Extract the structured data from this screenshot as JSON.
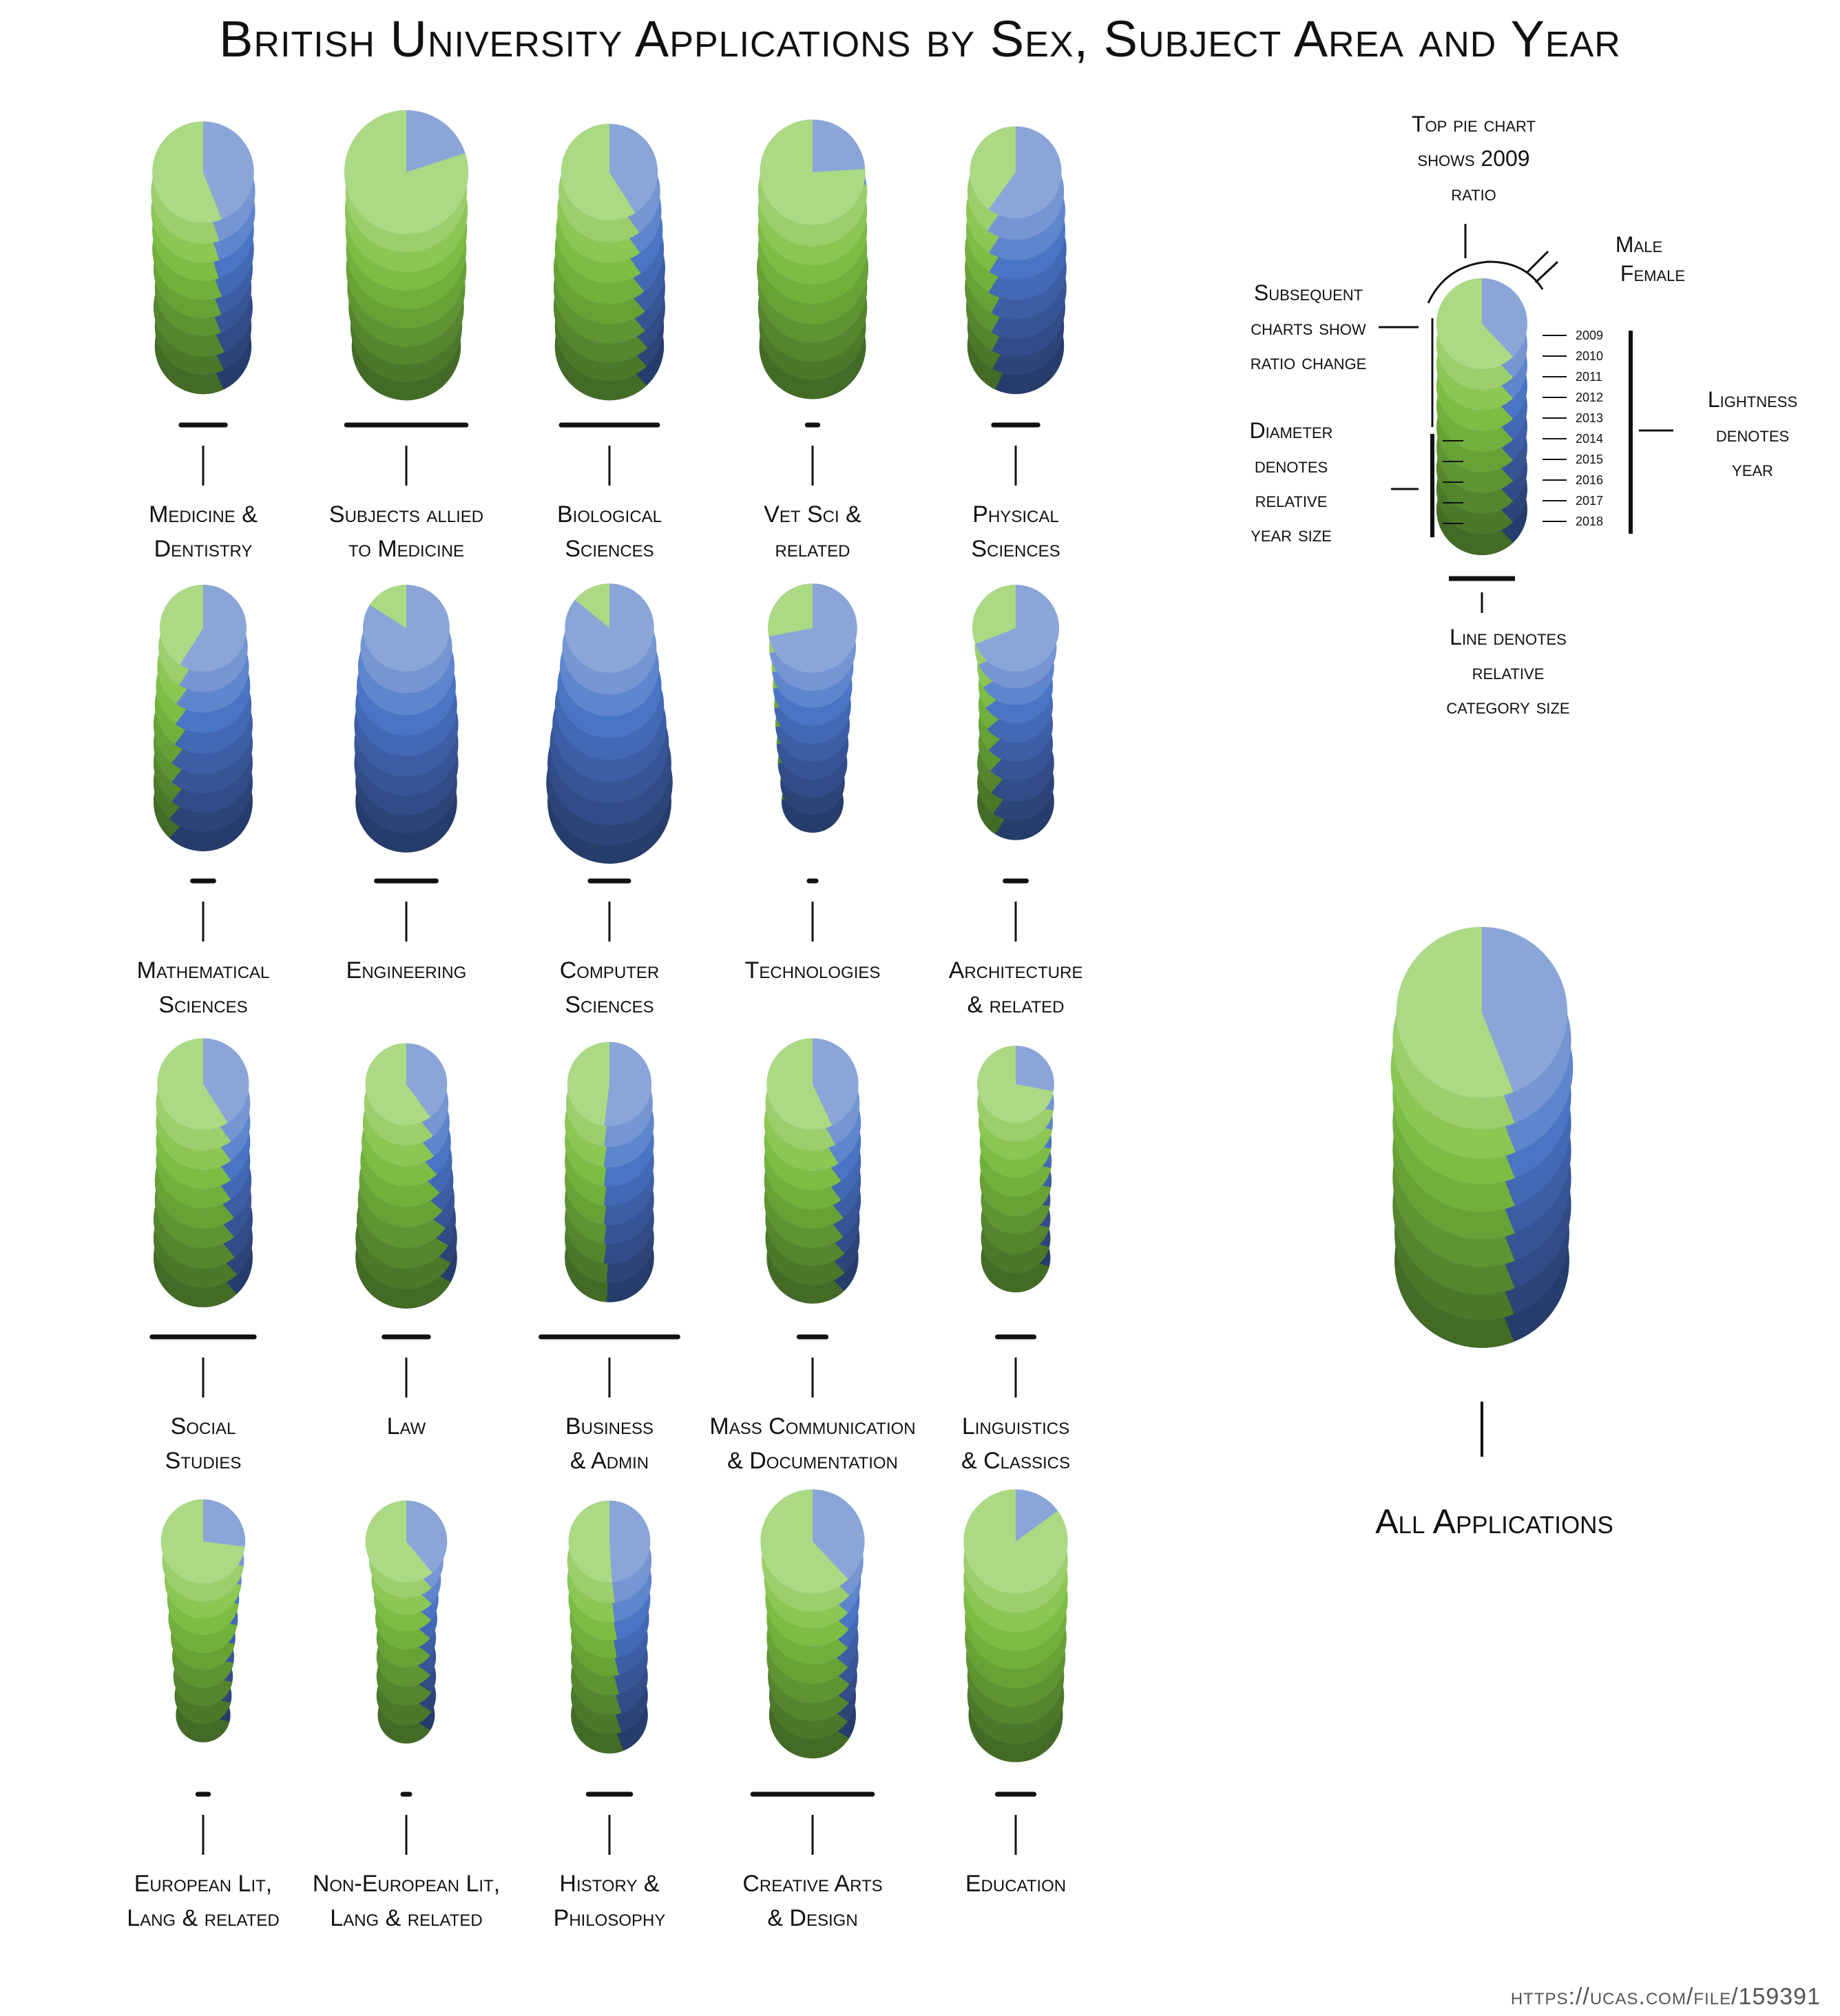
{
  "title": "British University Applications by Sex, Subject Area and Year",
  "source": "https://ucas.com/file/159391",
  "colors": {
    "female": "#7fbf3f",
    "male": "#3f6fbf"
  },
  "chart_data": {
    "type": "pie",
    "subtitle": "",
    "years": [
      "2009",
      "2010",
      "2011",
      "2012",
      "2013",
      "2014",
      "2015",
      "2016",
      "2017",
      "2018"
    ],
    "categories": [
      {
        "label1": "Medicine &",
        "label2": "Dentistry",
        "female_share": [
          0.56,
          0.55,
          0.55,
          0.55,
          0.56,
          0.56,
          0.56,
          0.57,
          0.57,
          0.57
        ],
        "relative_year_size": [
          0.82,
          0.84,
          0.84,
          0.82,
          0.82,
          0.8,
          0.78,
          0.8,
          0.78,
          0.78
        ],
        "relative_category_size": 0.46
      },
      {
        "label1": "Subjects allied",
        "label2": "to Medicine",
        "female_share": [
          0.8,
          0.8,
          0.79,
          0.79,
          0.79,
          0.79,
          0.78,
          0.78,
          0.78,
          0.78
        ],
        "relative_year_size": [
          1.0,
          0.98,
          0.99,
          0.98,
          0.97,
          0.97,
          0.95,
          0.93,
          0.9,
          0.88
        ],
        "relative_category_size": 1.24
      },
      {
        "label1": "Biological",
        "label2": "Sciences",
        "female_share": [
          0.59,
          0.6,
          0.6,
          0.6,
          0.61,
          0.61,
          0.61,
          0.62,
          0.62,
          0.62
        ],
        "relative_year_size": [
          0.78,
          0.82,
          0.84,
          0.86,
          0.88,
          0.9,
          0.9,
          0.9,
          0.88,
          0.88
        ],
        "relative_category_size": 1.0
      },
      {
        "label1": "Vet Sci &",
        "label2": "related",
        "female_share": [
          0.76,
          0.77,
          0.78,
          0.78,
          0.79,
          0.79,
          0.8,
          0.8,
          0.8,
          0.81
        ],
        "relative_year_size": [
          0.85,
          0.88,
          0.88,
          0.88,
          0.88,
          0.9,
          0.88,
          0.88,
          0.86,
          0.86
        ],
        "relative_category_size": 0.11
      },
      {
        "label1": "Physical",
        "label2": "Sciences",
        "female_share": [
          0.4,
          0.4,
          0.41,
          0.41,
          0.41,
          0.42,
          0.42,
          0.42,
          0.42,
          0.43
        ],
        "relative_year_size": [
          0.74,
          0.78,
          0.8,
          0.8,
          0.82,
          0.82,
          0.82,
          0.8,
          0.78,
          0.78
        ],
        "relative_category_size": 0.46
      },
      {
        "label1": "Mathematical",
        "label2": "Sciences",
        "female_share": [
          0.41,
          0.41,
          0.4,
          0.4,
          0.4,
          0.39,
          0.39,
          0.39,
          0.38,
          0.38
        ],
        "relative_year_size": [
          0.7,
          0.72,
          0.74,
          0.76,
          0.78,
          0.8,
          0.8,
          0.8,
          0.8,
          0.8
        ],
        "relative_category_size": 0.22
      },
      {
        "label1": "Engineering",
        "label2": "",
        "female_share": [
          0.16,
          0.16,
          0.16,
          0.17,
          0.17,
          0.18,
          0.18,
          0.19,
          0.19,
          0.2
        ],
        "relative_year_size": [
          0.7,
          0.74,
          0.78,
          0.8,
          0.82,
          0.84,
          0.84,
          0.84,
          0.82,
          0.82
        ],
        "relative_category_size": 0.62
      },
      {
        "label1": "Computer",
        "label2": "Sciences",
        "female_share": [
          0.14,
          0.14,
          0.14,
          0.15,
          0.15,
          0.15,
          0.16,
          0.16,
          0.17,
          0.18
        ],
        "relative_year_size": [
          0.72,
          0.76,
          0.8,
          0.84,
          0.88,
          0.92,
          0.96,
          1.0,
          1.02,
          1.0
        ],
        "relative_category_size": 0.4
      },
      {
        "label1": "Technologies",
        "label2": "",
        "female_share": [
          0.28,
          0.27,
          0.27,
          0.26,
          0.26,
          0.26,
          0.25,
          0.25,
          0.24,
          0.24
        ],
        "relative_year_size": [
          0.72,
          0.7,
          0.66,
          0.64,
          0.62,
          0.6,
          0.58,
          0.56,
          0.52,
          0.5
        ],
        "relative_category_size": 0.04
      },
      {
        "label1": "Architecture",
        "label2": "& related",
        "female_share": [
          0.31,
          0.32,
          0.34,
          0.35,
          0.36,
          0.37,
          0.38,
          0.39,
          0.4,
          0.41
        ],
        "relative_year_size": [
          0.7,
          0.66,
          0.62,
          0.6,
          0.6,
          0.6,
          0.6,
          0.62,
          0.62,
          0.62
        ],
        "relative_category_size": 0.22
      },
      {
        "label1": "Social",
        "label2": "Studies",
        "female_share": [
          0.59,
          0.6,
          0.6,
          0.6,
          0.6,
          0.61,
          0.61,
          0.61,
          0.62,
          0.62
        ],
        "relative_year_size": [
          0.74,
          0.76,
          0.76,
          0.76,
          0.76,
          0.78,
          0.78,
          0.8,
          0.8,
          0.8
        ],
        "relative_category_size": 1.06
      },
      {
        "label1": "Law",
        "label2": "",
        "female_share": [
          0.6,
          0.61,
          0.61,
          0.62,
          0.63,
          0.64,
          0.65,
          0.66,
          0.67,
          0.67
        ],
        "relative_year_size": [
          0.66,
          0.68,
          0.7,
          0.72,
          0.74,
          0.76,
          0.78,
          0.8,
          0.82,
          0.82
        ],
        "relative_category_size": 0.46
      },
      {
        "label1": "Business",
        "label2": "& Admin",
        "female_share": [
          0.48,
          0.48,
          0.48,
          0.48,
          0.48,
          0.48,
          0.48,
          0.48,
          0.49,
          0.49
        ],
        "relative_year_size": [
          0.68,
          0.7,
          0.72,
          0.72,
          0.72,
          0.72,
          0.72,
          0.72,
          0.72,
          0.72
        ],
        "relative_category_size": 1.42
      },
      {
        "label1": "Mass Communication",
        "label2": "& Documentation",
        "female_share": [
          0.57,
          0.58,
          0.59,
          0.6,
          0.6,
          0.61,
          0.61,
          0.62,
          0.62,
          0.62
        ],
        "relative_year_size": [
          0.74,
          0.76,
          0.78,
          0.78,
          0.78,
          0.78,
          0.78,
          0.76,
          0.76,
          0.74
        ],
        "relative_category_size": 0.28
      },
      {
        "label1": "Linguistics",
        "label2": "& Classics",
        "female_share": [
          0.72,
          0.72,
          0.72,
          0.72,
          0.72,
          0.72,
          0.72,
          0.71,
          0.71,
          0.71
        ],
        "relative_year_size": [
          0.62,
          0.62,
          0.6,
          0.58,
          0.58,
          0.58,
          0.56,
          0.56,
          0.56,
          0.56
        ],
        "relative_category_size": 0.38
      },
      {
        "label1": "European Lit,",
        "label2": "Lang & related",
        "female_share": [
          0.73,
          0.73,
          0.73,
          0.73,
          0.72,
          0.72,
          0.72,
          0.72,
          0.71,
          0.71
        ],
        "relative_year_size": [
          0.68,
          0.66,
          0.62,
          0.58,
          0.56,
          0.52,
          0.5,
          0.48,
          0.46,
          0.44
        ],
        "relative_category_size": 0.11
      },
      {
        "label1": "Non-European Lit,",
        "label2": "Lang & related",
        "female_share": [
          0.61,
          0.62,
          0.63,
          0.64,
          0.64,
          0.65,
          0.65,
          0.66,
          0.66,
          0.66
        ],
        "relative_year_size": [
          0.66,
          0.6,
          0.56,
          0.52,
          0.5,
          0.48,
          0.48,
          0.48,
          0.48,
          0.46
        ],
        "relative_category_size": 0.04
      },
      {
        "label1": "History &",
        "label2": "Philosophy",
        "female_share": [
          0.51,
          0.52,
          0.52,
          0.53,
          0.53,
          0.54,
          0.54,
          0.55,
          0.55,
          0.56
        ],
        "relative_year_size": [
          0.66,
          0.68,
          0.68,
          0.66,
          0.64,
          0.62,
          0.62,
          0.62,
          0.62,
          0.62
        ],
        "relative_category_size": 0.44
      },
      {
        "label1": "Creative Arts",
        "label2": "& Design",
        "female_share": [
          0.62,
          0.63,
          0.63,
          0.64,
          0.64,
          0.64,
          0.65,
          0.65,
          0.65,
          0.66
        ],
        "relative_year_size": [
          0.84,
          0.82,
          0.78,
          0.76,
          0.74,
          0.74,
          0.74,
          0.72,
          0.7,
          0.7
        ],
        "relative_category_size": 1.24
      },
      {
        "label1": "Education",
        "label2": "",
        "female_share": [
          0.85,
          0.85,
          0.86,
          0.86,
          0.86,
          0.87,
          0.87,
          0.87,
          0.87,
          0.88
        ],
        "relative_year_size": [
          0.84,
          0.84,
          0.84,
          0.84,
          0.82,
          0.82,
          0.8,
          0.78,
          0.78,
          0.76
        ],
        "relative_category_size": 0.38
      }
    ],
    "all": {
      "label": "All Applications",
      "female_share": [
        0.56,
        0.56,
        0.56,
        0.56,
        0.56,
        0.56,
        0.56,
        0.56,
        0.56,
        0.56
      ],
      "relative_year_size": [
        0.92,
        0.96,
        0.98,
        0.96,
        0.96,
        0.96,
        0.96,
        0.96,
        0.94,
        0.94
      ]
    }
  },
  "legend": {
    "top_pie": [
      "Top pie chart",
      "shows 2009",
      "ratio"
    ],
    "male": "Male",
    "female": "Female",
    "subsequent": [
      "Subsequent",
      "charts show",
      "ratio change"
    ],
    "diameter": [
      "Diameter",
      "denotes",
      "relative",
      "year size"
    ],
    "lightness": [
      "Lightness",
      "denotes",
      "year"
    ],
    "line": [
      "Line denotes",
      "relative",
      "category size"
    ],
    "years": [
      "2009",
      "2010",
      "2011",
      "2012",
      "2013",
      "2014",
      "2015",
      "2016",
      "2017",
      "2018"
    ]
  }
}
